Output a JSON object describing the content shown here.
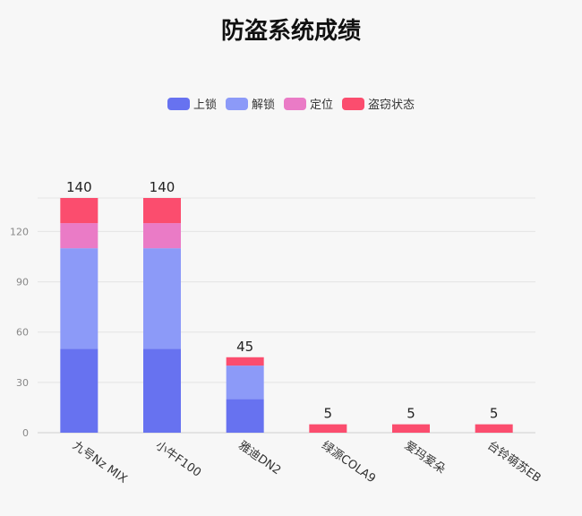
{
  "title": "防盗系统成绩",
  "chart_data": {
    "type": "bar",
    "stacked": true,
    "categories": [
      "九号Nz MIX",
      "小牛F100",
      "雅迪DN2",
      "绿源COLA9",
      "爱玛爱朵",
      "台铃萌苏EB"
    ],
    "series": [
      {
        "name": "上锁",
        "color": "#6772f0",
        "values": [
          50,
          50,
          20,
          0,
          0,
          0
        ]
      },
      {
        "name": "解锁",
        "color": "#8c9af8",
        "values": [
          60,
          60,
          20,
          0,
          0,
          0
        ]
      },
      {
        "name": "定位",
        "color": "#ea7bc6",
        "values": [
          15,
          15,
          0,
          0,
          0,
          0
        ]
      },
      {
        "name": "盗窃状态",
        "color": "#fb4d6e",
        "values": [
          15,
          15,
          5,
          5,
          5,
          5
        ]
      }
    ],
    "totals": [
      140,
      140,
      45,
      5,
      5,
      5
    ],
    "y_ticks": [
      0,
      30,
      60,
      90,
      120
    ],
    "ylim": [
      0,
      140
    ],
    "grid": true,
    "legend_position": "top-center"
  }
}
